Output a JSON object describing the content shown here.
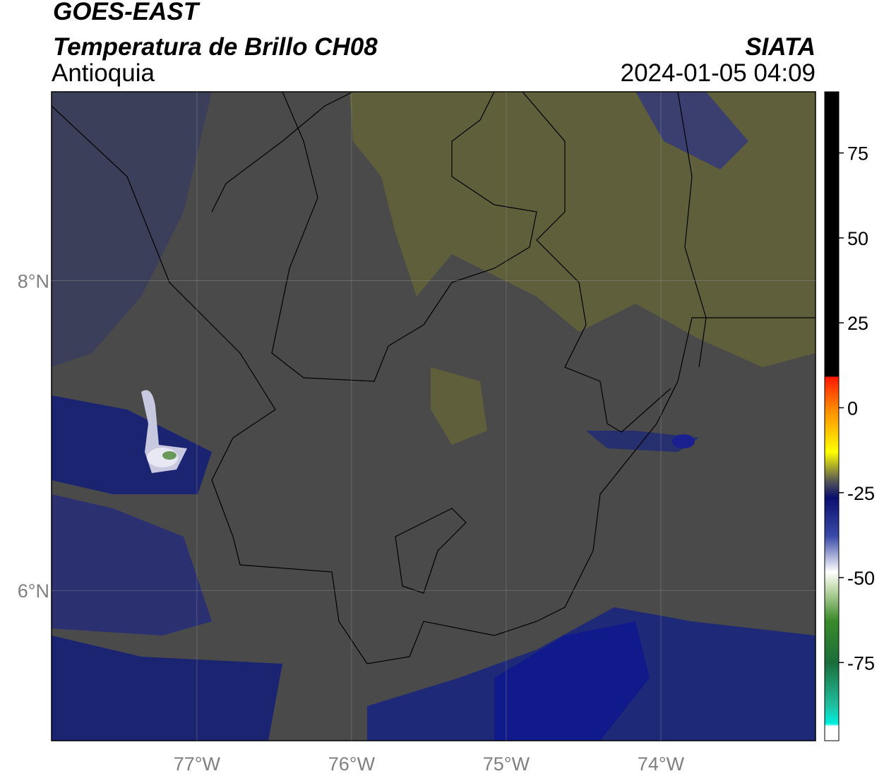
{
  "header": {
    "satellite": "GOES-EAST",
    "product": "Temperatura de Brillo CH08",
    "region": "Antioquia",
    "source": "SIATA",
    "datetime": "2024-01-05 04:09"
  },
  "map": {
    "xlim": [
      -77.94,
      -73
    ],
    "ylim": [
      5.03,
      9.22
    ],
    "xticks": [
      {
        "value": -77,
        "label": "77°W"
      },
      {
        "value": -76,
        "label": "76°W"
      },
      {
        "value": -75,
        "label": "75°W"
      },
      {
        "value": -74,
        "label": "74°W"
      }
    ],
    "yticks": [
      {
        "value": 6,
        "label": "6°N"
      },
      {
        "value": 8,
        "label": "8°N"
      }
    ],
    "grid": true
  },
  "colorbar": {
    "lim": [
      -98,
      93
    ],
    "ticks": [
      -75,
      -50,
      -25,
      0,
      25,
      50,
      75
    ]
  }
}
